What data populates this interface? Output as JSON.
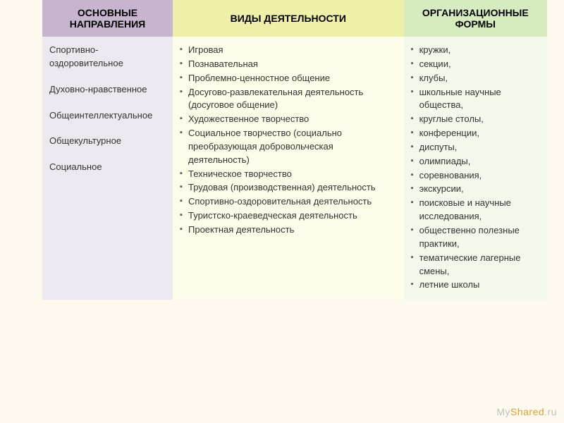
{
  "table": {
    "header_bg": {
      "col1": "#c7b5cf",
      "col2": "#eeefa9",
      "col3": "#d6ecc0"
    },
    "cell_bg": {
      "col1": "#ede7f0",
      "col2": "#fcfce9",
      "col3": "#f2f9ec"
    },
    "page_bg": "#fdf9ee",
    "font_family": "Arial",
    "header_fontsize_pt": 11,
    "cell_fontsize_pt": 10,
    "headers": {
      "col1": "ОСНОВНЫЕ НАПРАВЛЕНИЯ",
      "col2": "ВИДЫ ДЕЯТЕЛЬНОСТИ",
      "col3": "ОРГАНИЗАЦИОННЫЕ ФОРМЫ"
    },
    "directions": [
      "Спортивно-оздоровительное",
      "Духовно-нравственное",
      "Общеинтеллектуальное",
      "Общекультурное",
      "Социальное"
    ],
    "activities": [
      "Игровая",
      " Познавательная",
      " Проблемно-ценностное общение",
      "Досугово-развлекательная деятельность (досуговое общение)",
      " Художественное творчество",
      " Социальное творчество (социально преобразующая добровольческая деятельность)",
      " Техническое творчество",
      " Трудовая (производственная) деятельность",
      " Спортивно-оздоровительная деятельность",
      " Туристско-краеведческая деятельность",
      " Проектная деятельность"
    ],
    "forms": [
      "кружки,",
      "секции,",
      "клубы,",
      "школьные научные общества,",
      "круглые столы,",
      "конференции,",
      "диспуты,",
      "олимпиады,",
      "соревнования,",
      "экскурсии,",
      "поисковые и научные исследования,",
      "общественно полезные практики,",
      "тематические лагерные смены,",
      "летние школы"
    ]
  },
  "watermark": {
    "part1": "My",
    "part2": "Shared",
    "part3": ".ru"
  }
}
